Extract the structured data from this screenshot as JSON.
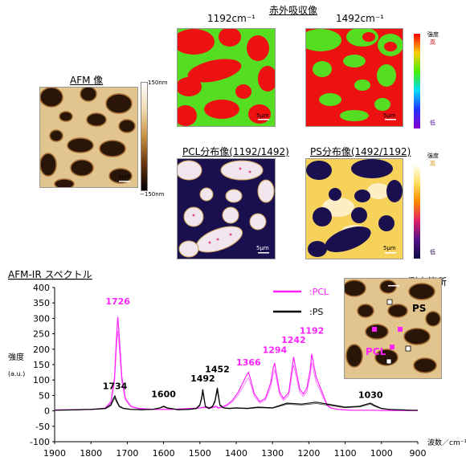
{
  "images": {
    "ir_title": "赤外吸収像",
    "ir1192": "1192cm⁻¹",
    "ir1492": "1492cm⁻¹",
    "afm_title": "AFM 像",
    "afm_max": "150nm",
    "afm_min": "−150nm",
    "pcl_title": "PCL分布像(1192/1492)",
    "ps_title": "PS分布像(1492/1192)",
    "scale_label": "5μm",
    "intensity_label": "強度",
    "high": "高",
    "low": "低",
    "measure_title": "測定箇所",
    "measure_ps": "PS",
    "measure_pcl": "PCL"
  },
  "colors": {
    "pcl": "#ff22ff",
    "ps": "#000000",
    "ir_red": "#ee1111",
    "ir_green": "#55dd22",
    "ratio_dark": "#1a1050",
    "afm_bg": "#e2c48e",
    "afm_dark": "#2a1608"
  },
  "chart_data": {
    "type": "line",
    "title": "AFM-IR スペクトル",
    "xlabel": "波数／cm⁻¹",
    "ylabel": "強度",
    "ylabel_unit": "(a.u.)",
    "xlim": [
      1900,
      900
    ],
    "ylim": [
      -100,
      400
    ],
    "x_ticks": [
      1900,
      1800,
      1700,
      1600,
      1500,
      1400,
      1300,
      1200,
      1100,
      1000,
      900
    ],
    "y_ticks": [
      -100,
      -50,
      0,
      50,
      100,
      150,
      200,
      250,
      300,
      350,
      400
    ],
    "grid": false,
    "legend_position": "top-right",
    "series": [
      {
        "name": ":PCL",
        "color": "#ff22ff",
        "x": [
          1900,
          1850,
          1800,
          1780,
          1760,
          1745,
          1735,
          1730,
          1726,
          1722,
          1715,
          1705,
          1690,
          1670,
          1640,
          1620,
          1600,
          1580,
          1560,
          1540,
          1520,
          1500,
          1490,
          1480,
          1470,
          1455,
          1450,
          1440,
          1425,
          1410,
          1395,
          1380,
          1372,
          1366,
          1360,
          1350,
          1335,
          1320,
          1305,
          1298,
          1294,
          1290,
          1280,
          1270,
          1255,
          1246,
          1242,
          1238,
          1225,
          1215,
          1205,
          1196,
          1192,
          1188,
          1180,
          1170,
          1160,
          1150,
          1140,
          1120,
          1100,
          1080,
          1060,
          1040,
          1030,
          1020,
          1000,
          980,
          960,
          940,
          920,
          900
        ],
        "y": [
          3,
          4,
          5,
          6,
          10,
          30,
          110,
          230,
          305,
          240,
          110,
          40,
          15,
          8,
          6,
          5,
          5,
          5,
          6,
          7,
          8,
          10,
          12,
          12,
          10,
          15,
          10,
          12,
          20,
          35,
          60,
          95,
          115,
          125,
          100,
          55,
          30,
          40,
          90,
          140,
          155,
          125,
          60,
          40,
          60,
          140,
          175,
          150,
          70,
          55,
          75,
          135,
          185,
          160,
          110,
          80,
          50,
          20,
          10,
          5,
          3,
          2,
          2,
          2,
          2,
          2,
          1,
          1,
          1,
          1,
          1,
          1
        ]
      },
      {
        "name": ":PS",
        "color": "#000000",
        "x": [
          1900,
          1850,
          1800,
          1760,
          1745,
          1738,
          1734,
          1730,
          1722,
          1710,
          1690,
          1660,
          1630,
          1610,
          1600,
          1590,
          1560,
          1530,
          1510,
          1500,
          1495,
          1492,
          1489,
          1485,
          1475,
          1465,
          1458,
          1455,
          1452,
          1449,
          1445,
          1435,
          1420,
          1400,
          1370,
          1340,
          1300,
          1260,
          1220,
          1180,
          1140,
          1100,
          1060,
          1040,
          1030,
          1020,
          1000,
          980,
          960,
          940,
          920,
          900
        ],
        "y": [
          2,
          3,
          5,
          8,
          20,
          40,
          48,
          35,
          15,
          8,
          5,
          4,
          5,
          10,
          15,
          10,
          4,
          5,
          8,
          20,
          45,
          70,
          45,
          15,
          8,
          15,
          35,
          55,
          75,
          50,
          20,
          10,
          8,
          10,
          8,
          12,
          10,
          25,
          22,
          28,
          20,
          12,
          15,
          22,
          25,
          18,
          8,
          5,
          4,
          3,
          2,
          2
        ]
      }
    ],
    "annotations": [
      {
        "text": "1726",
        "x": 1726,
        "y": 345,
        "color": "#ff22ff"
      },
      {
        "text": "1734",
        "x": 1734,
        "y": 70,
        "color": "#000000"
      },
      {
        "text": "1600",
        "x": 1600,
        "y": 45,
        "color": "#000000"
      },
      {
        "text": "1492",
        "x": 1492,
        "y": 95,
        "color": "#000000"
      },
      {
        "text": "1452",
        "x": 1452,
        "y": 125,
        "color": "#000000"
      },
      {
        "text": "1366",
        "x": 1366,
        "y": 148,
        "color": "#ff22ff"
      },
      {
        "text": "1294",
        "x": 1294,
        "y": 188,
        "color": "#ff22ff"
      },
      {
        "text": "1242",
        "x": 1242,
        "y": 220,
        "color": "#ff22ff"
      },
      {
        "text": "1192",
        "x": 1192,
        "y": 250,
        "color": "#ff22ff"
      },
      {
        "text": "1030",
        "x": 1030,
        "y": 42,
        "color": "#000000"
      }
    ]
  }
}
